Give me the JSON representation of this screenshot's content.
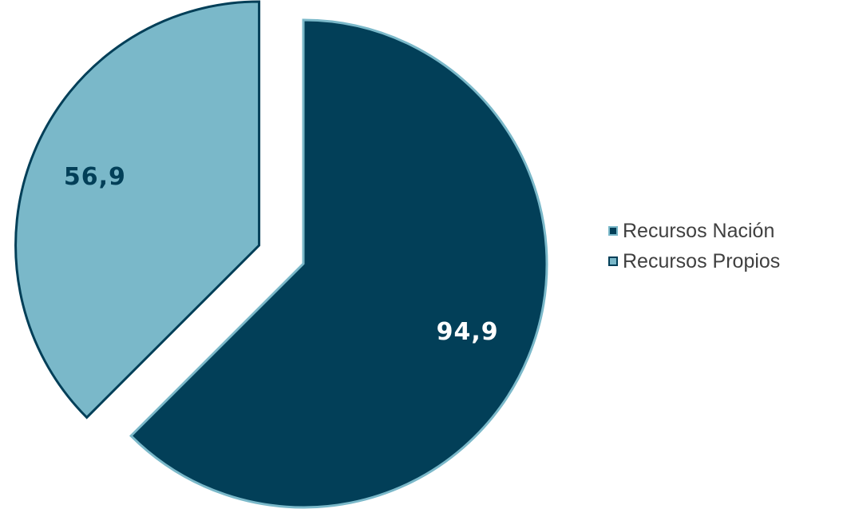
{
  "chart_data": {
    "type": "pie",
    "title": "",
    "slices": [
      {
        "label": "Recursos Nación",
        "value": 94.9,
        "display": "94,9",
        "color": "#023f58",
        "edge": "#7ab8c9",
        "exploded": false
      },
      {
        "label": "Recursos Propios",
        "value": 56.9,
        "display": "56,9",
        "color": "#7ab8c9",
        "edge": "#023f58",
        "exploded": true
      }
    ],
    "legend": {
      "position": "right",
      "entries": [
        {
          "label": "Recursos Nación",
          "fill": "#023f58",
          "border": "#7ab8c9"
        },
        {
          "label": "Recursos Propios",
          "fill": "#7ab8c9",
          "border": "#023f58"
        }
      ]
    }
  }
}
